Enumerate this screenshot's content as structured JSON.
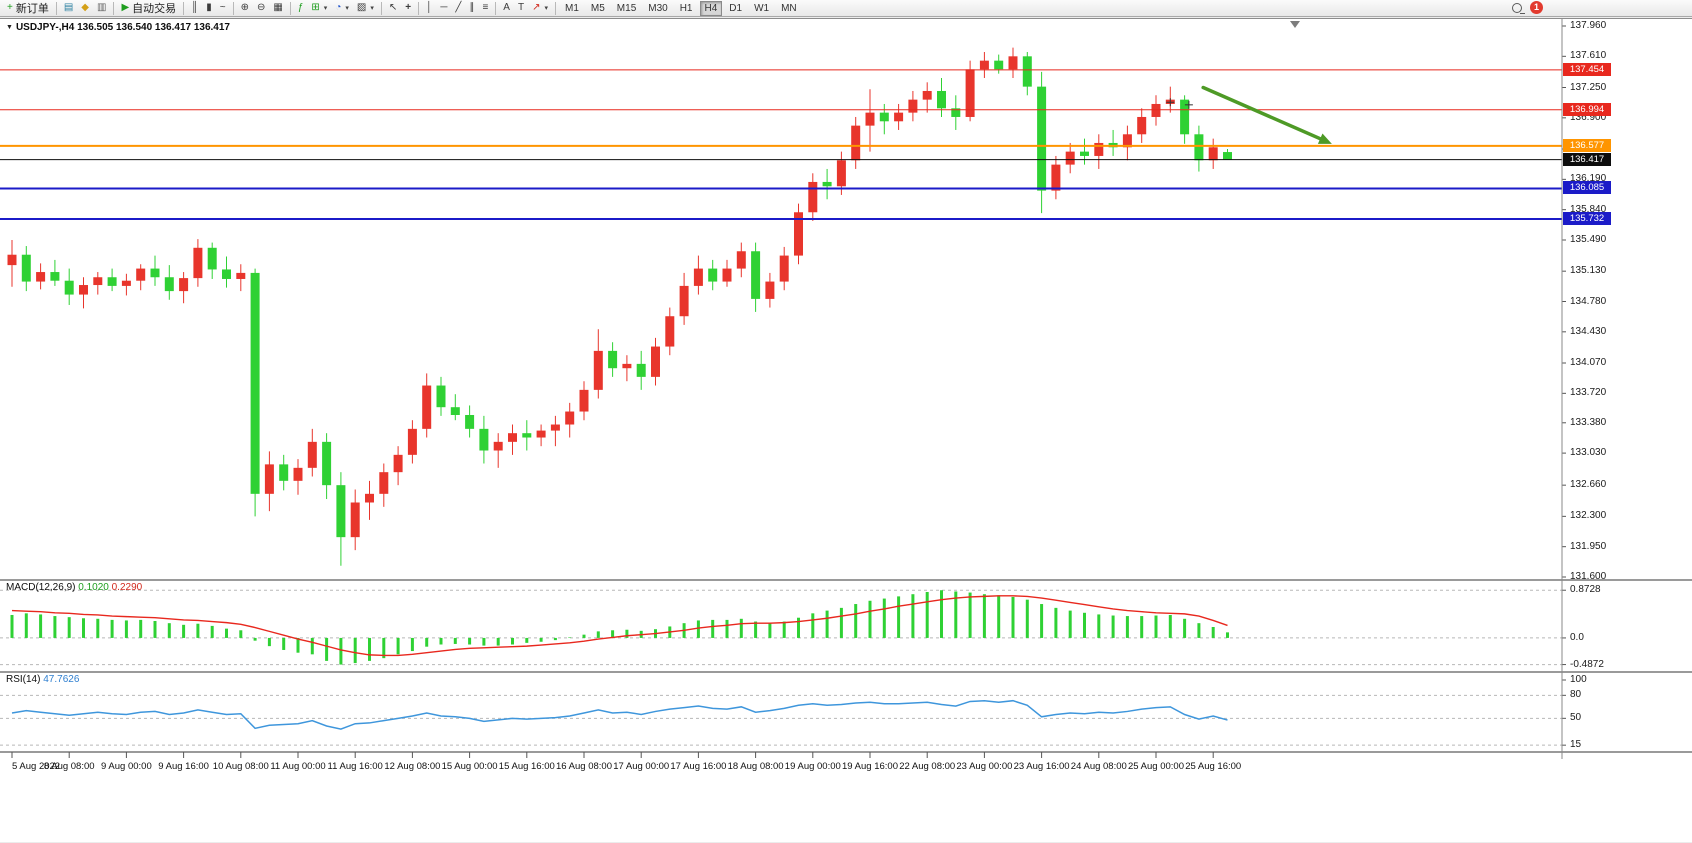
{
  "toolbar": {
    "new_order": "新订单",
    "autotrade": "自动交易",
    "timeframes": [
      "M1",
      "M5",
      "M15",
      "M30",
      "H1",
      "H4",
      "D1",
      "W1",
      "MN"
    ],
    "active_timeframe": "H4",
    "notification_count": "1",
    "icons": {
      "new_order": "+",
      "market_watch": "▤",
      "navigator": "◆",
      "terminal": "▥",
      "autotrade": "▶",
      "bar_chart": "║",
      "candlestick": "▮",
      "line_chart": "~",
      "zoom_in": "⊕",
      "zoom_out": "⊖",
      "tile_windows": "▦",
      "indicators": "ƒ",
      "add_indicator": "⊞",
      "periods": "◔",
      "templates": "▨",
      "cursor": "↖",
      "crosshair": "+",
      "vline": "│",
      "hline": "─",
      "trendline": "╱",
      "channel": "∥",
      "fibonacci": "≡",
      "text": "A",
      "text_label": "T",
      "arrows": "↗",
      "dropdown": "▾"
    }
  },
  "chart": {
    "title": "USDJPY-,H4 136.505 136.540 136.417 136.417",
    "collapse_arrow": "▼"
  },
  "indicators": {
    "macd": {
      "label": "MACD(12,26,9)",
      "value_main": "0.1020",
      "value_signal": "0.2290"
    },
    "rsi": {
      "label": "RSI(14)",
      "value": "47.7626"
    }
  },
  "chart_data": [
    {
      "type": "candlestick",
      "symbol": "USDJPY-",
      "timeframe": "H4",
      "title": "USDJPY-,H4",
      "ylim": [
        131.6,
        137.96
      ],
      "up_color": "#e8352c",
      "down_color": "#2fd134",
      "y_tick_labels": [
        "137.960",
        "137.610",
        "137.250",
        "136.900",
        "136.540",
        "136.190",
        "135.840",
        "135.490",
        "135.130",
        "134.780",
        "134.430",
        "134.070",
        "133.720",
        "133.380",
        "133.030",
        "132.660",
        "132.300",
        "131.950",
        "131.600"
      ],
      "time_labels": [
        "5 Aug 2022",
        "8 Aug 08:00",
        "9 Aug 00:00",
        "9 Aug 16:00",
        "10 Aug 08:00",
        "11 Aug 00:00",
        "11 Aug 16:00",
        "12 Aug 08:00",
        "15 Aug 00:00",
        "15 Aug 16:00",
        "16 Aug 08:00",
        "17 Aug 00:00",
        "17 Aug 16:00",
        "18 Aug 08:00",
        "19 Aug 00:00",
        "19 Aug 16:00",
        "22 Aug 08:00",
        "23 Aug 00:00",
        "23 Aug 16:00",
        "24 Aug 08:00",
        "25 Aug 00:00",
        "25 Aug 16:00"
      ],
      "candles_per_label": 4,
      "ohlc": [
        [
          135.2,
          135.49,
          134.95,
          135.32
        ],
        [
          135.32,
          135.42,
          134.9,
          135.01
        ],
        [
          135.01,
          135.22,
          134.92,
          135.12
        ],
        [
          135.12,
          135.26,
          134.96,
          135.02
        ],
        [
          135.02,
          135.16,
          134.74,
          134.86
        ],
        [
          134.86,
          135.06,
          134.7,
          134.97
        ],
        [
          134.97,
          135.12,
          134.86,
          135.06
        ],
        [
          135.06,
          135.16,
          134.9,
          134.96
        ],
        [
          134.96,
          135.1,
          134.85,
          135.02
        ],
        [
          135.02,
          135.21,
          134.91,
          135.16
        ],
        [
          135.16,
          135.31,
          134.96,
          135.06
        ],
        [
          135.06,
          135.2,
          134.8,
          134.9
        ],
        [
          134.9,
          135.12,
          134.76,
          135.05
        ],
        [
          135.05,
          135.5,
          134.95,
          135.4
        ],
        [
          135.4,
          135.46,
          135.04,
          135.15
        ],
        [
          135.15,
          135.3,
          134.94,
          135.04
        ],
        [
          135.04,
          135.21,
          134.9,
          135.11
        ],
        [
          135.11,
          135.16,
          132.3,
          132.56
        ],
        [
          132.56,
          133.05,
          132.36,
          132.9
        ],
        [
          132.9,
          133.01,
          132.6,
          132.71
        ],
        [
          132.71,
          132.96,
          132.55,
          132.86
        ],
        [
          132.86,
          133.31,
          132.76,
          133.16
        ],
        [
          133.16,
          133.26,
          132.5,
          132.66
        ],
        [
          132.66,
          132.81,
          131.73,
          132.06
        ],
        [
          132.06,
          132.61,
          131.91,
          132.46
        ],
        [
          132.46,
          132.71,
          132.26,
          132.56
        ],
        [
          132.56,
          132.91,
          132.41,
          132.81
        ],
        [
          132.81,
          133.11,
          132.66,
          133.01
        ],
        [
          133.01,
          133.41,
          132.91,
          133.31
        ],
        [
          133.31,
          133.95,
          133.21,
          133.81
        ],
        [
          133.81,
          133.91,
          133.46,
          133.56
        ],
        [
          133.56,
          133.71,
          133.41,
          133.47
        ],
        [
          133.47,
          133.58,
          133.21,
          133.31
        ],
        [
          133.31,
          133.46,
          132.91,
          133.06
        ],
        [
          133.06,
          133.26,
          132.86,
          133.16
        ],
        [
          133.16,
          133.36,
          133.01,
          133.26
        ],
        [
          133.26,
          133.41,
          133.06,
          133.21
        ],
        [
          133.21,
          133.36,
          133.11,
          133.29
        ],
        [
          133.29,
          133.46,
          133.11,
          133.36
        ],
        [
          133.36,
          133.61,
          133.21,
          133.51
        ],
        [
          133.51,
          133.86,
          133.41,
          133.76
        ],
        [
          133.76,
          134.46,
          133.66,
          134.21
        ],
        [
          134.21,
          134.31,
          133.91,
          134.01
        ],
        [
          134.01,
          134.16,
          133.86,
          134.06
        ],
        [
          134.06,
          134.21,
          133.76,
          133.91
        ],
        [
          133.91,
          134.36,
          133.81,
          134.26
        ],
        [
          134.26,
          134.71,
          134.16,
          134.61
        ],
        [
          134.61,
          135.11,
          134.51,
          134.96
        ],
        [
          134.96,
          135.31,
          134.86,
          135.16
        ],
        [
          135.16,
          135.26,
          134.91,
          135.01
        ],
        [
          135.01,
          135.26,
          134.95,
          135.16
        ],
        [
          135.16,
          135.46,
          135.06,
          135.36
        ],
        [
          135.36,
          135.46,
          134.66,
          134.81
        ],
        [
          134.81,
          135.11,
          134.71,
          135.01
        ],
        [
          135.01,
          135.41,
          134.91,
          135.31
        ],
        [
          135.31,
          135.91,
          135.21,
          135.81
        ],
        [
          135.81,
          136.26,
          135.71,
          136.16
        ],
        [
          136.16,
          136.31,
          135.96,
          136.11
        ],
        [
          136.11,
          136.51,
          136.01,
          136.41
        ],
        [
          136.41,
          136.91,
          136.31,
          136.81
        ],
        [
          136.81,
          137.23,
          136.51,
          136.96
        ],
        [
          136.96,
          137.06,
          136.71,
          136.86
        ],
        [
          136.86,
          137.06,
          136.76,
          136.96
        ],
        [
          136.96,
          137.21,
          136.86,
          137.11
        ],
        [
          137.11,
          137.31,
          136.96,
          137.21
        ],
        [
          137.21,
          137.36,
          136.91,
          137.01
        ],
        [
          137.01,
          137.16,
          136.76,
          136.91
        ],
        [
          136.91,
          137.56,
          136.86,
          137.46
        ],
        [
          137.46,
          137.66,
          137.36,
          137.56
        ],
        [
          137.56,
          137.63,
          137.41,
          137.46
        ],
        [
          137.46,
          137.71,
          137.36,
          137.61
        ],
        [
          137.61,
          137.66,
          137.16,
          137.26
        ],
        [
          137.26,
          137.43,
          135.8,
          136.06
        ],
        [
          136.06,
          136.46,
          135.96,
          136.36
        ],
        [
          136.36,
          136.61,
          136.26,
          136.51
        ],
        [
          136.51,
          136.66,
          136.36,
          136.46
        ],
        [
          136.46,
          136.71,
          136.31,
          136.61
        ],
        [
          136.61,
          136.76,
          136.46,
          136.56
        ],
        [
          136.56,
          136.81,
          136.41,
          136.71
        ],
        [
          136.71,
          137.01,
          136.61,
          136.91
        ],
        [
          136.91,
          137.16,
          136.81,
          137.06
        ],
        [
          137.06,
          137.26,
          136.96,
          137.11
        ],
        [
          137.11,
          137.16,
          136.6,
          136.71
        ],
        [
          136.71,
          136.81,
          136.28,
          136.41
        ],
        [
          136.41,
          136.66,
          136.31,
          136.56
        ],
        [
          136.505,
          136.54,
          136.417,
          136.417
        ]
      ],
      "hlines": [
        {
          "price": 137.454,
          "label": "137.454",
          "color": "#e8281e",
          "width": 1
        },
        {
          "price": 136.994,
          "label": "136.994",
          "color": "#e8281e",
          "width": 1
        },
        {
          "price": 136.577,
          "label": "136.577",
          "color": "#ff9500",
          "width": 2
        },
        {
          "price": 136.417,
          "label": "136.417",
          "color": "#0d0d0d",
          "width": 1
        },
        {
          "price": 136.085,
          "label": "136.085",
          "color": "#1b1bc8",
          "width": 2
        },
        {
          "price": 135.732,
          "label": "135.732",
          "color": "#1b1bc8",
          "width": 2
        }
      ],
      "arrow_annotation": {
        "x1_candle": 83.3,
        "y1_price": 137.25,
        "x2_candle": 92.3,
        "y2_price": 136.6,
        "color": "#4e9a26"
      },
      "anchor_crosses": [
        {
          "candle": 81,
          "price": 137.08
        },
        {
          "candle": 82.3,
          "price": 137.05
        }
      ]
    },
    {
      "type": "bar",
      "name": "MACD(12,26,9)",
      "ylim": [
        -0.55,
        0.95
      ],
      "histogram_color": "#2fd134",
      "signal_color": "#e8281e",
      "ticks": [
        {
          "value": 0.8728,
          "label": "0.8728"
        },
        {
          "value": 0.0,
          "label": "0.0"
        },
        {
          "value": -0.4872,
          "label": "-0.4872"
        }
      ],
      "histogram": [
        0.42,
        0.45,
        0.43,
        0.4,
        0.38,
        0.36,
        0.35,
        0.33,
        0.32,
        0.33,
        0.31,
        0.27,
        0.24,
        0.26,
        0.22,
        0.17,
        0.14,
        -0.05,
        -0.15,
        -0.22,
        -0.27,
        -0.3,
        -0.42,
        -0.4872,
        -0.46,
        -0.42,
        -0.37,
        -0.3,
        -0.24,
        -0.16,
        -0.12,
        -0.11,
        -0.12,
        -0.14,
        -0.14,
        -0.12,
        -0.09,
        -0.07,
        -0.04,
        0.01,
        0.06,
        0.12,
        0.14,
        0.15,
        0.13,
        0.16,
        0.21,
        0.27,
        0.32,
        0.33,
        0.33,
        0.35,
        0.3,
        0.28,
        0.3,
        0.37,
        0.45,
        0.5,
        0.55,
        0.62,
        0.68,
        0.72,
        0.76,
        0.8,
        0.84,
        0.8728,
        0.85,
        0.83,
        0.8,
        0.78,
        0.75,
        0.7,
        0.62,
        0.55,
        0.5,
        0.46,
        0.43,
        0.41,
        0.4,
        0.4,
        0.41,
        0.42,
        0.35,
        0.27,
        0.2,
        0.102
      ],
      "signal": [
        0.5,
        0.49,
        0.48,
        0.46,
        0.45,
        0.43,
        0.42,
        0.4,
        0.39,
        0.38,
        0.37,
        0.35,
        0.33,
        0.32,
        0.3,
        0.28,
        0.25,
        0.19,
        0.12,
        0.05,
        -0.02,
        -0.08,
        -0.15,
        -0.22,
        -0.27,
        -0.31,
        -0.32,
        -0.32,
        -0.3,
        -0.27,
        -0.24,
        -0.21,
        -0.19,
        -0.18,
        -0.17,
        -0.16,
        -0.15,
        -0.13,
        -0.11,
        -0.09,
        -0.06,
        -0.02,
        0.01,
        0.04,
        0.06,
        0.08,
        0.11,
        0.14,
        0.18,
        0.21,
        0.23,
        0.26,
        0.27,
        0.27,
        0.28,
        0.3,
        0.33,
        0.36,
        0.4,
        0.44,
        0.49,
        0.53,
        0.58,
        0.62,
        0.66,
        0.7,
        0.73,
        0.75,
        0.76,
        0.77,
        0.77,
        0.76,
        0.73,
        0.69,
        0.65,
        0.61,
        0.57,
        0.53,
        0.5,
        0.48,
        0.46,
        0.45,
        0.44,
        0.4,
        0.32,
        0.229
      ]
    },
    {
      "type": "line",
      "name": "RSI(14)",
      "ylim": [
        10,
        100
      ],
      "line_color": "#3e96dc",
      "ticks": [
        {
          "value": 100,
          "label": "100",
          "line": false
        },
        {
          "value": 80,
          "label": "80",
          "line": true
        },
        {
          "value": 50,
          "label": "50",
          "line": true
        },
        {
          "value": 15,
          "label": "15",
          "line": true
        }
      ],
      "values": [
        57,
        60,
        58,
        56,
        54,
        56,
        58,
        56,
        55,
        58,
        59,
        55,
        57,
        61,
        58,
        55,
        56,
        37,
        41,
        42,
        43,
        47,
        40,
        36,
        43,
        44,
        47,
        50,
        53,
        57,
        53,
        52,
        50,
        46,
        48,
        50,
        49,
        50,
        51,
        53,
        57,
        61,
        57,
        58,
        55,
        59,
        62,
        64,
        66,
        63,
        62,
        65,
        58,
        60,
        63,
        67,
        69,
        67,
        68,
        70,
        71,
        69,
        69,
        70,
        71,
        68,
        66,
        72,
        73,
        71,
        73,
        67,
        52,
        55,
        57,
        56,
        58,
        57,
        59,
        62,
        64,
        65,
        55,
        49,
        53,
        47.7626
      ]
    }
  ]
}
